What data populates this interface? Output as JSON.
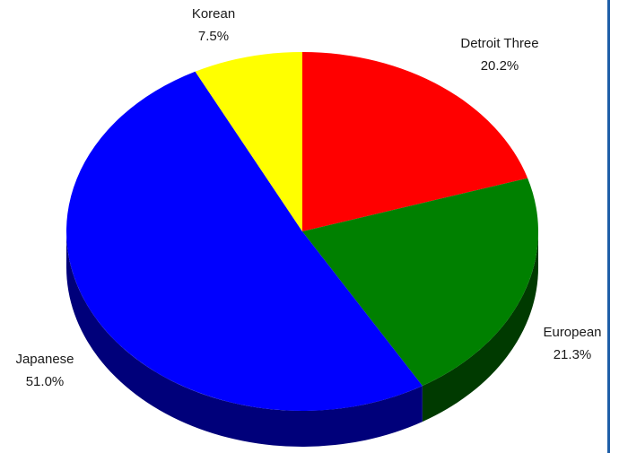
{
  "chart_data": {
    "type": "pie",
    "style": "3d",
    "title": "",
    "slices": [
      {
        "label": "Detroit Three",
        "value": 20.2,
        "display": "20.2%",
        "color": "#ff0000",
        "side_color": "#7a0000"
      },
      {
        "label": "European",
        "value": 21.3,
        "display": "21.3%",
        "color": "#008000",
        "side_color": "#003a00"
      },
      {
        "label": "Japanese",
        "value": 51.0,
        "display": "51.0%",
        "color": "#0000ff",
        "side_color": "#00007a"
      },
      {
        "label": "Korean",
        "value": 7.5,
        "display": "7.5%",
        "color": "#ffff00",
        "side_color": "#8a8a00"
      }
    ]
  }
}
